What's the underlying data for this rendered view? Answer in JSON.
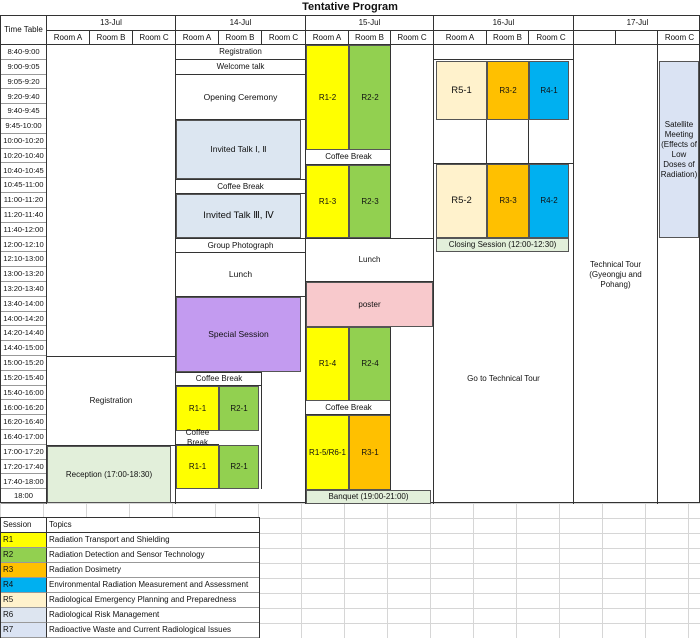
{
  "title": "Tentative Program",
  "header": {
    "time_table": "Time Table",
    "days": [
      "13-Jul",
      "14-Jul",
      "15-Jul",
      "16-Jul",
      "17-Jul"
    ],
    "room_a": "Room A",
    "room_b": "Room B",
    "room_c": "Room C"
  },
  "times": [
    "8:40-9:00",
    "9:00-9:05",
    "9:05-9:20",
    "9:20-9:40",
    "9:40-9:45",
    "9:45-10:00",
    "10:00-10:20",
    "10:20-10:40",
    "10:40-10:45",
    "10:45-11:00",
    "11:00-11:20",
    "11:20-11:40",
    "11:40-12:00",
    "12:00-12:10",
    "12:10-13:00",
    "13:00-13:20",
    "13:20-13:40",
    "13:40-14:00",
    "14:00-14:20",
    "14:20-14:40",
    "14:40-15:00",
    "15:00-15:20",
    "15:20-15:40",
    "15:40-16:00",
    "16:00-16:20",
    "16:20-16:40",
    "16:40-17:00",
    "17:00-17:20",
    "17:20-17:40",
    "17:40-18:00",
    "18:00"
  ],
  "jul13": {
    "registration": "Registration",
    "reception": "Reception (17:00-18:30)"
  },
  "jul14": {
    "registration": "Registration",
    "welcome": "Welcome talk",
    "opening": "Opening Ceremony",
    "invited1": "Invited Talk Ⅰ, Ⅱ",
    "coffee": "Coffee Break",
    "invited2": "Invited Talk Ⅲ, Ⅳ",
    "photo": "Group Photograph",
    "lunch": "Lunch",
    "special": "Special Session",
    "coffee2": "Coffee Break",
    "r1_1a": "R1-1",
    "r2_1a": "R2-1",
    "coffee3": "Coffee Break",
    "r1_1b": "R1-1",
    "r2_1b": "R2-1"
  },
  "jul15": {
    "r1_2": "R1-2",
    "r2_2": "R2-2",
    "coffee": "Coffee Break",
    "r1_3": "R1-3",
    "r2_3": "R2-3",
    "lunch": "Lunch",
    "poster": "poster",
    "r1_4": "R1-4",
    "r2_4": "R2-4",
    "coffee2": "Coffee Break",
    "r1_5": "R1-5/R6-1",
    "r3_1": "R3-1",
    "banquet": "Banquet (19:00-21:00)"
  },
  "jul16": {
    "r5_1": "R5-1",
    "r3_2": "R3-2",
    "r4_1": "R4-1",
    "r5_2": "R5-2",
    "r3_3": "R3-3",
    "r4_2": "R4-2",
    "closing": "Closing Session (12:00-12:30)",
    "tour": "Go to Technical Tour"
  },
  "jul17": {
    "tour": "Technical Tour\n(Gyeongju and Pohang)",
    "satellite": "Satellite Meeting (Effects of Low Doses of Radiation)"
  },
  "legend": {
    "session_header": "Session",
    "topics_header": "Topics",
    "rows": [
      {
        "code": "R1",
        "topic": "Radiation Transport and Shielding",
        "color": "#ffff00"
      },
      {
        "code": "R2",
        "topic": "Radiation Detection and Sensor Technology",
        "color": "#92d050"
      },
      {
        "code": "R3",
        "topic": "Radiation Dosimetry",
        "color": "#ffc000"
      },
      {
        "code": "R4",
        "topic": "Environmental Radiation Measurement and Assessment",
        "color": "#00b0f0"
      },
      {
        "code": "R5",
        "topic": "Radiological Emergency Planning and Preparedness",
        "color": "#fff2cc"
      },
      {
        "code": "R6",
        "topic": "Radiological Risk Management",
        "color": "#dde5f0"
      },
      {
        "code": "R7",
        "topic": "Radioactive Waste and Current Radiological Issues",
        "color": "#dae3f3"
      }
    ]
  },
  "colors": {
    "r1": "#ffff00",
    "r2": "#92d050",
    "r3": "#ffc000",
    "r4": "#00b0f0",
    "r5": "#fff2cc",
    "invited": "#dce6f1",
    "special": "#c39bf0",
    "poster": "#f8c9cc",
    "green_light": "#e2efda",
    "satellite": "#dae3f3"
  }
}
